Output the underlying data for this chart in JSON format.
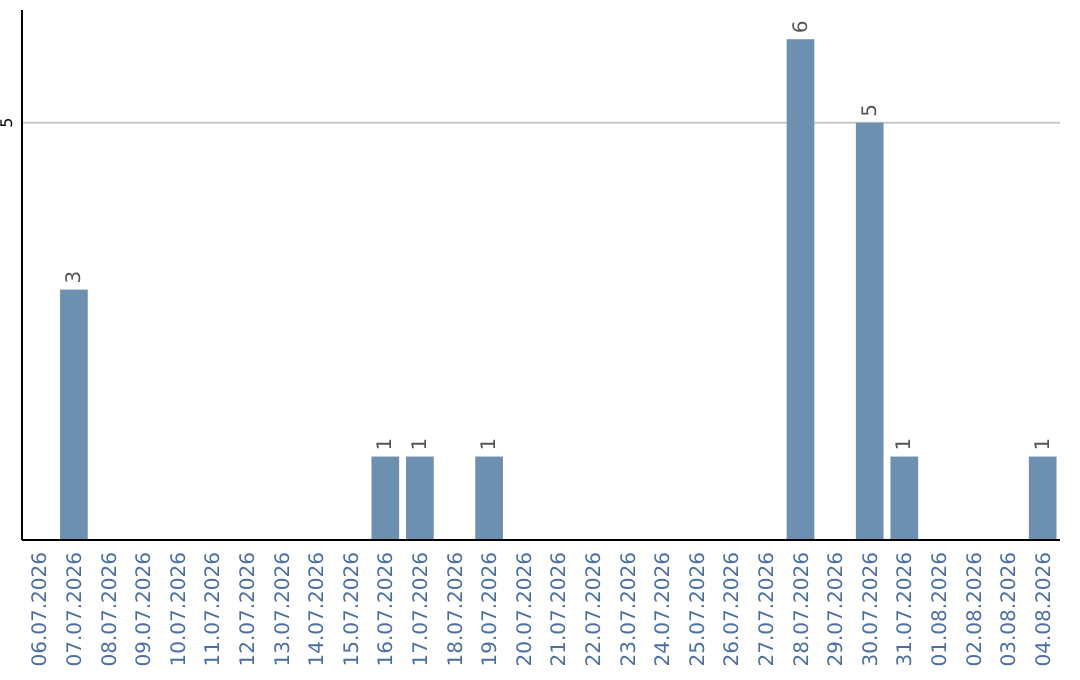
{
  "chart_data": {
    "type": "bar",
    "categories": [
      "06.07.2026",
      "07.07.2026",
      "08.07.2026",
      "09.07.2026",
      "10.07.2026",
      "11.07.2026",
      "12.07.2026",
      "13.07.2026",
      "14.07.2026",
      "15.07.2026",
      "16.07.2026",
      "17.07.2026",
      "18.07.2026",
      "19.07.2026",
      "20.07.2026",
      "21.07.2026",
      "22.07.2026",
      "23.07.2026",
      "24.07.2026",
      "25.07.2026",
      "26.07.2026",
      "27.07.2026",
      "28.07.2026",
      "29.07.2026",
      "30.07.2026",
      "31.07.2026",
      "01.08.2026",
      "02.08.2026",
      "03.08.2026",
      "04.08.2026"
    ],
    "values": [
      0,
      3,
      0,
      0,
      0,
      0,
      0,
      0,
      0,
      0,
      1,
      1,
      0,
      1,
      0,
      0,
      0,
      0,
      0,
      0,
      0,
      0,
      6,
      0,
      5,
      1,
      0,
      0,
      0,
      1
    ],
    "value_labels": [
      null,
      "3",
      null,
      null,
      null,
      null,
      null,
      null,
      null,
      null,
      "1",
      "1",
      null,
      "1",
      null,
      null,
      null,
      null,
      null,
      null,
      null,
      null,
      "6",
      null,
      "5",
      "1",
      null,
      null,
      null,
      "1"
    ],
    "color": "#6d8fb0",
    "ylim": [
      0,
      6.35
    ],
    "yticks": [
      5
    ],
    "grid": "y"
  }
}
